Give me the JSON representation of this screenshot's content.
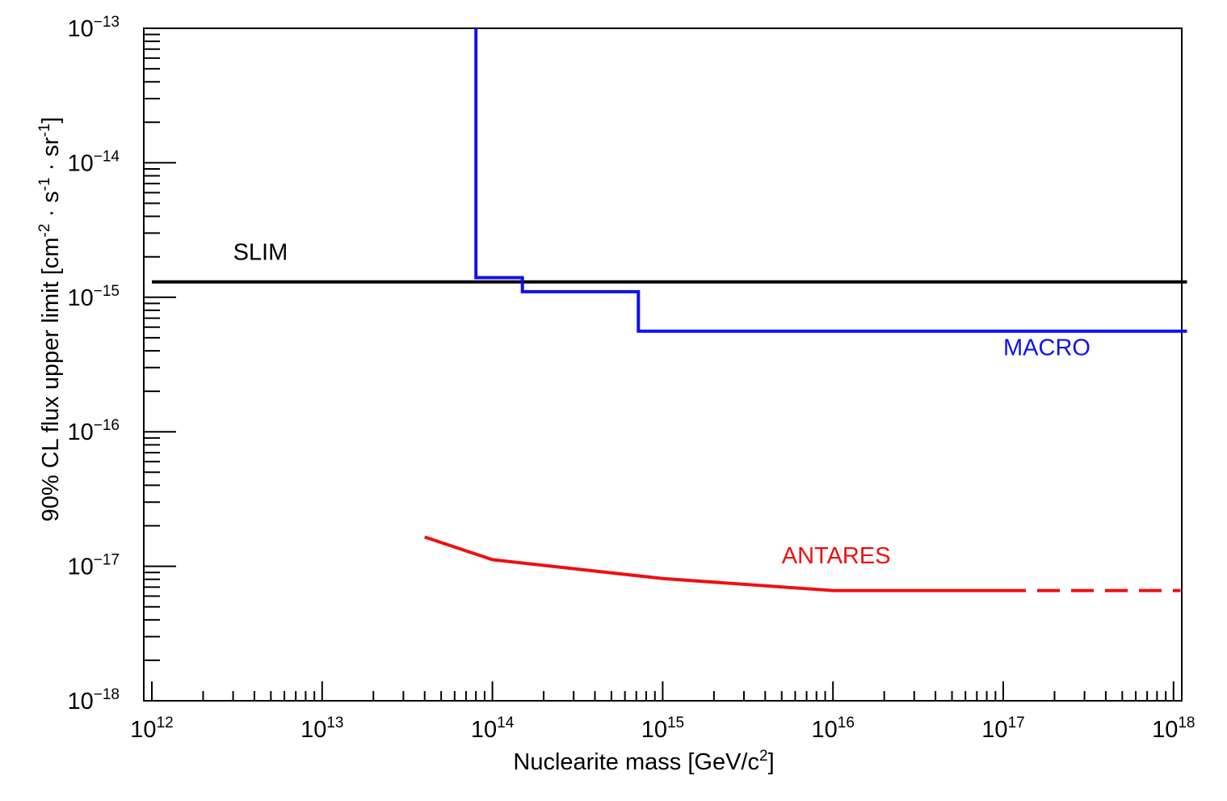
{
  "chart_data": {
    "type": "line",
    "title": "",
    "xlabel": "Nuclearite mass [GeV/c",
    "xlabel_sup": "2",
    "xlabel_end": "]",
    "ylabel": "90% CL flux upper limit [cm",
    "ylabel_parts": [
      {
        "t": "90% CL flux upper limit [cm",
        "sup": false
      },
      {
        "t": "-2",
        "sup": true
      },
      {
        "t": " · s",
        "sup": false
      },
      {
        "t": "-1",
        "sup": true
      },
      {
        "t": " · sr",
        "sup": false
      },
      {
        "t": "-1",
        "sup": true
      },
      {
        "t": "]",
        "sup": false
      }
    ],
    "x_scale": "log",
    "y_scale": "log",
    "xlim": [
      1000000000000.0,
      1.2e+18
    ],
    "ylim": [
      1e-18,
      1e-13
    ],
    "x_ticks": [
      {
        "base": "10",
        "exp": "12"
      },
      {
        "base": "10",
        "exp": "13"
      },
      {
        "base": "10",
        "exp": "14"
      },
      {
        "base": "10",
        "exp": "15"
      },
      {
        "base": "10",
        "exp": "16"
      },
      {
        "base": "10",
        "exp": "17"
      },
      {
        "base": "10",
        "exp": "18"
      }
    ],
    "y_ticks": [
      {
        "base": "10",
        "exp": "−18"
      },
      {
        "base": "10",
        "exp": "−17"
      },
      {
        "base": "10",
        "exp": "−16"
      },
      {
        "base": "10",
        "exp": "−15"
      },
      {
        "base": "10",
        "exp": "−14"
      },
      {
        "base": "10",
        "exp": "−13"
      }
    ],
    "grid": false,
    "series": [
      {
        "name": "SLIM",
        "color": "#000000",
        "style": "solid",
        "x": [
          1000000000000.0,
          1.2e+18
        ],
        "y": [
          1.3e-15,
          1.3e-15
        ]
      },
      {
        "name": "MACRO",
        "color": "#1010ee",
        "style": "step",
        "x": [
          80000000000000.0,
          80000000000000.0,
          150000000000000.0,
          150000000000000.0,
          720000000000000.0,
          720000000000000.0,
          1.2e+18
        ],
        "y": [
          1e-13,
          1.4e-15,
          1.4e-15,
          1.1e-15,
          1.1e-15,
          5.6e-16,
          5.6e-16
        ]
      },
      {
        "name": "ANTARES",
        "color": "#ee1010",
        "style": "solid",
        "x": [
          40000000000000.0,
          100000000000000.0,
          1000000000000000.0,
          1e+16,
          1e+17
        ],
        "y": [
          1.65e-17,
          1.12e-17,
          8.1e-18,
          6.6e-18,
          6.6e-18
        ]
      },
      {
        "name": "ANTARES (extrapolated)",
        "color": "#ee1010",
        "style": "dashed",
        "x": [
          1e+17,
          1.1e+18
        ],
        "y": [
          6.6e-18,
          6.6e-18
        ]
      }
    ],
    "annotations": [
      {
        "text": "SLIM",
        "color": "#000000",
        "x": 3000000000000.0,
        "y": 1.9e-15
      },
      {
        "text": "MACRO",
        "color": "#1010ee",
        "x": 1e+17,
        "y": 3.7e-16
      },
      {
        "text": "ANTARES",
        "color": "#ee1010",
        "x": 5000000000000000.0,
        "y": 1.05e-17
      }
    ]
  }
}
